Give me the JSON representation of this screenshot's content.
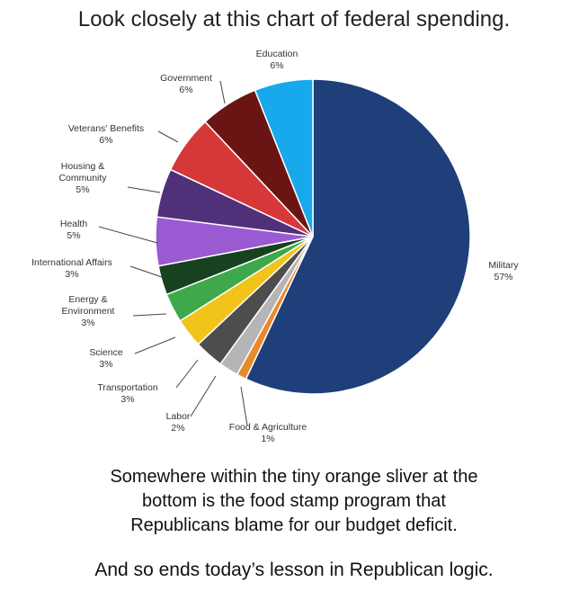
{
  "headline": "Look closely at this chart of federal spending.",
  "caption_lines": [
    "Somewhere within the tiny orange sliver at the",
    "bottom is the food stamp program that",
    "Republicans blame for our budget deficit.",
    "And so ends today’s lesson in Republican logic."
  ],
  "chart_data": {
    "type": "pie",
    "title": "",
    "slices": [
      {
        "label": "Military",
        "value": 57,
        "value_label": "57%",
        "color": "#1f3f7a"
      },
      {
        "label": "Food & Agriculture",
        "value": 1,
        "value_label": "1%",
        "color": "#e8892b"
      },
      {
        "label": "Labor",
        "value": 2,
        "value_label": "2%",
        "color": "#b5b5b5"
      },
      {
        "label": "Transportation",
        "value": 3,
        "value_label": "3%",
        "color": "#4d4d4d"
      },
      {
        "label": "Science",
        "value": 3,
        "value_label": "3%",
        "color": "#f2c41a"
      },
      {
        "label": "Energy & Environment",
        "value": 3,
        "value_label": "3%",
        "color": "#3ea84a"
      },
      {
        "label": "International Affairs",
        "value": 3,
        "value_label": "3%",
        "color": "#17421f"
      },
      {
        "label": "Health",
        "value": 5,
        "value_label": "5%",
        "color": "#9a5ad2"
      },
      {
        "label": "Housing & Community",
        "value": 5,
        "value_label": "5%",
        "color": "#51307a"
      },
      {
        "label": "Veterans' Benefits",
        "value": 6,
        "value_label": "6%",
        "color": "#d6383a"
      },
      {
        "label": "Government",
        "value": 6,
        "value_label": "6%",
        "color": "#6b1414"
      },
      {
        "label": "Education",
        "value": 6,
        "value_label": "6%",
        "color": "#17a9ec"
      }
    ],
    "start_angle_deg": 0,
    "direction": "clockwise",
    "legend": "none"
  }
}
